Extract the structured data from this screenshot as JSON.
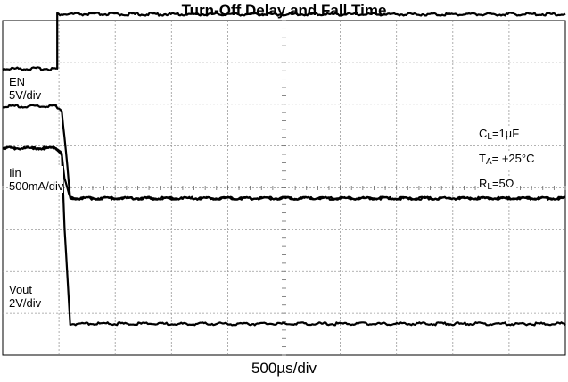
{
  "chart_data": {
    "type": "line",
    "title": "Turn-Off Delay and Fall Time",
    "xlabel": "500µs/div",
    "ylabel": "",
    "grid": true,
    "x_divisions": 10,
    "y_divisions": 8,
    "x_unit": "div",
    "xlim": [
      0,
      10
    ],
    "ylim": [
      0,
      8
    ],
    "series": [
      {
        "name": "EN",
        "scale": "5V/div",
        "x": [
          0,
          0.97,
          0.97,
          10
        ],
        "y": [
          6.85,
          6.85,
          8.15,
          8.15
        ]
      },
      {
        "name": "Iin",
        "scale": "500mA/div",
        "x": [
          0,
          0.95,
          1.05,
          1.1,
          1.2,
          10
        ],
        "y": [
          5.95,
          5.95,
          5.85,
          5.2,
          3.75,
          3.75
        ]
      },
      {
        "name": "",
        "scale": "",
        "x": [
          0,
          0.95,
          1.05,
          1.1,
          1.2,
          10
        ],
        "y": [
          4.95,
          4.95,
          4.85,
          4.2,
          3.75,
          3.75
        ]
      },
      {
        "name": "Vout",
        "scale": "2V/div",
        "x": [
          0,
          0.95,
          1.05,
          1.1,
          1.2,
          10
        ],
        "y": [
          4.95,
          4.95,
          4.8,
          3.0,
          0.75,
          0.75
        ]
      }
    ],
    "conditions": [
      {
        "main": "C",
        "sub": "L",
        "rest": "=1µF"
      },
      {
        "main": "T",
        "sub": "A",
        "rest": "= +25°C"
      },
      {
        "main": "R",
        "sub": "L",
        "rest": "=5Ω"
      }
    ]
  }
}
